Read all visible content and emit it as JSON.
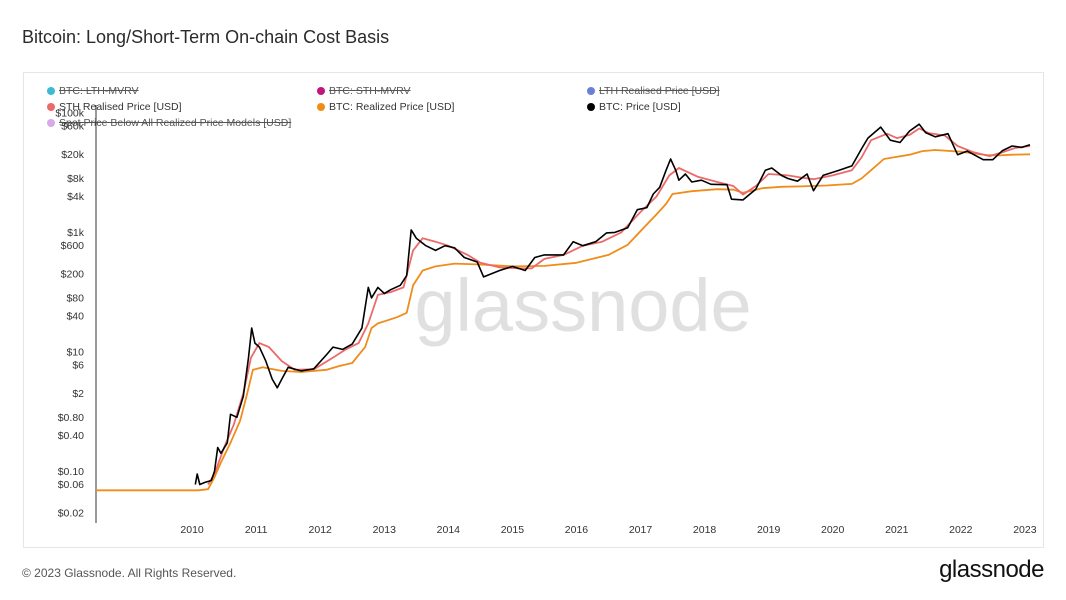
{
  "title": "Bitcoin: Long/Short-Term On-chain Cost Basis",
  "watermark": "glassnode",
  "footer": "© 2023 Glassnode. All Rights Reserved.",
  "brand": "glassnode",
  "colors": {
    "lth_mvrv": "#3bbcd3",
    "sth_mvrv": "#c2177a",
    "lth_realised": "#6a7fd8",
    "sth_realised": "#ec6a6a",
    "realized": "#f08c1a",
    "price": "#000000",
    "spot_below": "#d7a9e8"
  },
  "legend": [
    {
      "label": "BTC: LTH-MVRV",
      "color": "#3bbcd3",
      "hidden": true
    },
    {
      "label": "BTC: STH-MVRV",
      "color": "#c2177a",
      "hidden": true
    },
    {
      "label": "LTH Realised Price [USD]",
      "color": "#6a7fd8",
      "hidden": true
    },
    {
      "label": "STH Realised Price [USD]",
      "color": "#ec6a6a",
      "hidden": false
    },
    {
      "label": "BTC: Realized Price [USD]",
      "color": "#f08c1a",
      "hidden": false
    },
    {
      "label": "BTC: Price [USD]",
      "color": "#000000",
      "hidden": false
    },
    {
      "label": "Spot Price Below All Realized Price Models [USD]",
      "color": "#d7a9e8",
      "hidden": true
    }
  ],
  "chart_data": {
    "type": "line",
    "title": "Bitcoin: Long/Short-Term On-chain Cost Basis",
    "y_scale": "log",
    "ylim": [
      0.02,
      100000
    ],
    "xlim": [
      2009.0,
      2023.58
    ],
    "x_ticks": [
      "2010",
      "2011",
      "2012",
      "2013",
      "2014",
      "2015",
      "2016",
      "2017",
      "2018",
      "2019",
      "2020",
      "2021",
      "2022",
      "2023"
    ],
    "y_ticks": [
      {
        "value": 100000,
        "label": "$100k"
      },
      {
        "value": 60000,
        "label": "$60k"
      },
      {
        "value": 20000,
        "label": "$20k"
      },
      {
        "value": 8000,
        "label": "$8k"
      },
      {
        "value": 4000,
        "label": "$4k"
      },
      {
        "value": 1000,
        "label": "$1k"
      },
      {
        "value": 600,
        "label": "$600"
      },
      {
        "value": 200,
        "label": "$200"
      },
      {
        "value": 80,
        "label": "$80"
      },
      {
        "value": 40,
        "label": "$40"
      },
      {
        "value": 10,
        "label": "$10"
      },
      {
        "value": 6,
        "label": "$6"
      },
      {
        "value": 2,
        "label": "$2"
      },
      {
        "value": 0.8,
        "label": "$0.80"
      },
      {
        "value": 0.4,
        "label": "$0.40"
      },
      {
        "value": 0.1,
        "label": "$0.10"
      },
      {
        "value": 0.06,
        "label": "$0.06"
      },
      {
        "value": 0.02,
        "label": "$0.02"
      }
    ],
    "series": [
      {
        "name": "BTC: Realized Price [USD]",
        "color": "#f08c1a",
        "points": [
          [
            2009.0,
            0.048
          ],
          [
            2010.6,
            0.048
          ],
          [
            2010.75,
            0.05
          ],
          [
            2010.85,
            0.08
          ],
          [
            2010.95,
            0.14
          ],
          [
            2011.1,
            0.3
          ],
          [
            2011.25,
            0.7
          ],
          [
            2011.35,
            1.8
          ],
          [
            2011.45,
            5.0
          ],
          [
            2011.6,
            5.5
          ],
          [
            2011.9,
            4.8
          ],
          [
            2012.2,
            4.6
          ],
          [
            2012.6,
            5.0
          ],
          [
            2012.8,
            5.8
          ],
          [
            2013.0,
            6.5
          ],
          [
            2013.2,
            12
          ],
          [
            2013.3,
            25
          ],
          [
            2013.4,
            30
          ],
          [
            2013.7,
            38
          ],
          [
            2013.85,
            45
          ],
          [
            2013.95,
            130
          ],
          [
            2014.1,
            230
          ],
          [
            2014.3,
            270
          ],
          [
            2014.6,
            300
          ],
          [
            2015.0,
            290
          ],
          [
            2015.5,
            270
          ],
          [
            2016.0,
            275
          ],
          [
            2016.5,
            310
          ],
          [
            2017.0,
            420
          ],
          [
            2017.3,
            620
          ],
          [
            2017.55,
            1200
          ],
          [
            2017.75,
            2000
          ],
          [
            2017.9,
            3000
          ],
          [
            2018.0,
            4400
          ],
          [
            2018.3,
            4900
          ],
          [
            2018.7,
            5300
          ],
          [
            2018.95,
            5200
          ],
          [
            2019.1,
            4600
          ],
          [
            2019.4,
            5500
          ],
          [
            2019.7,
            5800
          ],
          [
            2020.0,
            5900
          ],
          [
            2020.4,
            6100
          ],
          [
            2020.8,
            6500
          ],
          [
            2020.95,
            8000
          ],
          [
            2021.1,
            11000
          ],
          [
            2021.3,
            17000
          ],
          [
            2021.7,
            20000
          ],
          [
            2021.9,
            23000
          ],
          [
            2022.1,
            24000
          ],
          [
            2022.5,
            22500
          ],
          [
            2022.9,
            19800
          ],
          [
            2023.1,
            19500
          ],
          [
            2023.3,
            20000
          ],
          [
            2023.58,
            20300
          ]
        ]
      },
      {
        "name": "STH Realised Price [USD]",
        "color": "#ec6a6a",
        "points": [
          [
            2010.75,
            0.06
          ],
          [
            2010.85,
            0.09
          ],
          [
            2011.0,
            0.25
          ],
          [
            2011.15,
            0.6
          ],
          [
            2011.3,
            2.0
          ],
          [
            2011.42,
            8
          ],
          [
            2011.55,
            14
          ],
          [
            2011.7,
            12
          ],
          [
            2011.9,
            7
          ],
          [
            2012.1,
            5
          ],
          [
            2012.4,
            5.1
          ],
          [
            2012.7,
            8
          ],
          [
            2012.9,
            11
          ],
          [
            2013.1,
            14
          ],
          [
            2013.25,
            30
          ],
          [
            2013.4,
            90
          ],
          [
            2013.6,
            100
          ],
          [
            2013.8,
            120
          ],
          [
            2013.95,
            500
          ],
          [
            2014.1,
            800
          ],
          [
            2014.3,
            700
          ],
          [
            2014.5,
            600
          ],
          [
            2014.8,
            420
          ],
          [
            2015.0,
            310
          ],
          [
            2015.3,
            260
          ],
          [
            2015.6,
            250
          ],
          [
            2015.8,
            250
          ],
          [
            2016.0,
            360
          ],
          [
            2016.3,
            420
          ],
          [
            2016.6,
            600
          ],
          [
            2016.9,
            700
          ],
          [
            2017.2,
            1000
          ],
          [
            2017.5,
            2200
          ],
          [
            2017.75,
            4000
          ],
          [
            2017.95,
            9000
          ],
          [
            2018.1,
            12000
          ],
          [
            2018.4,
            8500
          ],
          [
            2018.7,
            7000
          ],
          [
            2018.95,
            6000
          ],
          [
            2019.1,
            4300
          ],
          [
            2019.3,
            6000
          ],
          [
            2019.5,
            9500
          ],
          [
            2019.8,
            9000
          ],
          [
            2020.0,
            8300
          ],
          [
            2020.2,
            7800
          ],
          [
            2020.5,
            9000
          ],
          [
            2020.8,
            11000
          ],
          [
            2020.95,
            18000
          ],
          [
            2021.1,
            35000
          ],
          [
            2021.35,
            45000
          ],
          [
            2021.5,
            38000
          ],
          [
            2021.7,
            43000
          ],
          [
            2021.85,
            55000
          ],
          [
            2022.0,
            46000
          ],
          [
            2022.25,
            42000
          ],
          [
            2022.45,
            28000
          ],
          [
            2022.7,
            22000
          ],
          [
            2022.95,
            19000
          ],
          [
            2023.15,
            22000
          ],
          [
            2023.35,
            26000
          ],
          [
            2023.58,
            28000
          ]
        ]
      },
      {
        "name": "BTC: Price [USD]",
        "color": "#000000",
        "points": [
          [
            2010.55,
            0.06
          ],
          [
            2010.58,
            0.09
          ],
          [
            2010.62,
            0.06
          ],
          [
            2010.7,
            0.065
          ],
          [
            2010.8,
            0.07
          ],
          [
            2010.85,
            0.1
          ],
          [
            2010.9,
            0.25
          ],
          [
            2010.95,
            0.2
          ],
          [
            2011.05,
            0.3
          ],
          [
            2011.1,
            0.9
          ],
          [
            2011.2,
            0.8
          ],
          [
            2011.3,
            1.8
          ],
          [
            2011.38,
            8
          ],
          [
            2011.43,
            25
          ],
          [
            2011.48,
            14
          ],
          [
            2011.55,
            12
          ],
          [
            2011.65,
            7
          ],
          [
            2011.75,
            3.5
          ],
          [
            2011.83,
            2.5
          ],
          [
            2011.9,
            3.5
          ],
          [
            2012.0,
            5.5
          ],
          [
            2012.2,
            4.8
          ],
          [
            2012.4,
            5.2
          ],
          [
            2012.6,
            9
          ],
          [
            2012.7,
            12
          ],
          [
            2012.85,
            11
          ],
          [
            2013.0,
            13.5
          ],
          [
            2013.15,
            25
          ],
          [
            2013.25,
            120
          ],
          [
            2013.3,
            80
          ],
          [
            2013.4,
            120
          ],
          [
            2013.5,
            95
          ],
          [
            2013.6,
            110
          ],
          [
            2013.75,
            130
          ],
          [
            2013.85,
            190
          ],
          [
            2013.92,
            1100
          ],
          [
            2014.0,
            800
          ],
          [
            2014.15,
            600
          ],
          [
            2014.3,
            500
          ],
          [
            2014.45,
            600
          ],
          [
            2014.6,
            550
          ],
          [
            2014.75,
            380
          ],
          [
            2014.95,
            320
          ],
          [
            2015.05,
            180
          ],
          [
            2015.3,
            230
          ],
          [
            2015.5,
            270
          ],
          [
            2015.7,
            230
          ],
          [
            2015.85,
            380
          ],
          [
            2016.0,
            420
          ],
          [
            2016.3,
            420
          ],
          [
            2016.45,
            700
          ],
          [
            2016.6,
            600
          ],
          [
            2016.8,
            700
          ],
          [
            2016.97,
            980
          ],
          [
            2017.1,
            1000
          ],
          [
            2017.3,
            1200
          ],
          [
            2017.45,
            2400
          ],
          [
            2017.6,
            2600
          ],
          [
            2017.7,
            4400
          ],
          [
            2017.8,
            5700
          ],
          [
            2017.9,
            11000
          ],
          [
            2017.97,
            17000
          ],
          [
            2018.05,
            11000
          ],
          [
            2018.1,
            7500
          ],
          [
            2018.2,
            9500
          ],
          [
            2018.3,
            7000
          ],
          [
            2018.45,
            7500
          ],
          [
            2018.6,
            6400
          ],
          [
            2018.85,
            6300
          ],
          [
            2018.92,
            3600
          ],
          [
            2019.1,
            3500
          ],
          [
            2019.3,
            5300
          ],
          [
            2019.45,
            11000
          ],
          [
            2019.55,
            12000
          ],
          [
            2019.7,
            9000
          ],
          [
            2019.8,
            8000
          ],
          [
            2019.95,
            7200
          ],
          [
            2020.1,
            9500
          ],
          [
            2020.2,
            5000
          ],
          [
            2020.35,
            9000
          ],
          [
            2020.6,
            11000
          ],
          [
            2020.8,
            13000
          ],
          [
            2020.95,
            25000
          ],
          [
            2021.05,
            38000
          ],
          [
            2021.25,
            58000
          ],
          [
            2021.4,
            35000
          ],
          [
            2021.55,
            32000
          ],
          [
            2021.7,
            50000
          ],
          [
            2021.85,
            65000
          ],
          [
            2021.95,
            47000
          ],
          [
            2022.1,
            40000
          ],
          [
            2022.3,
            45000
          ],
          [
            2022.45,
            20000
          ],
          [
            2022.6,
            23000
          ],
          [
            2022.85,
            16500
          ],
          [
            2023.0,
            16500
          ],
          [
            2023.15,
            23500
          ],
          [
            2023.3,
            28000
          ],
          [
            2023.45,
            26500
          ],
          [
            2023.58,
            29500
          ]
        ]
      }
    ]
  }
}
